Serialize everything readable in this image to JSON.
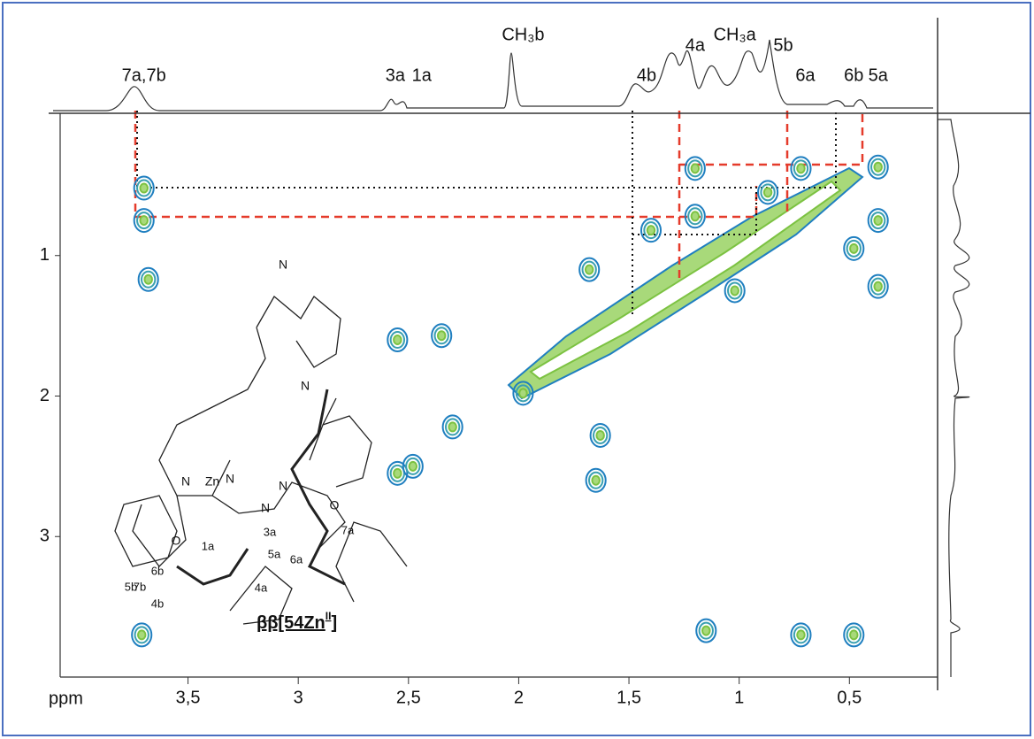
{
  "chart_data": {
    "type": "scatter",
    "x": [
      3.7,
      3.7,
      3.68,
      3.71,
      1.2,
      0.72,
      0.37,
      0.37,
      0.48,
      0.37,
      1.15,
      0.72,
      0.48,
      2.55,
      2.55,
      2.48,
      2.3,
      2.35,
      1.98,
      1.65,
      1.63,
      1.68,
      1.4,
      1.2,
      0.87,
      1.02
    ],
    "values": [
      0.52,
      0.75,
      1.17,
      3.7,
      0.38,
      0.38,
      0.37,
      0.75,
      0.95,
      1.22,
      3.67,
      3.7,
      3.7,
      1.6,
      2.55,
      2.5,
      2.22,
      1.57,
      1.98,
      2.6,
      2.28,
      1.1,
      0.82,
      0.72,
      0.55,
      1.25
    ],
    "xlim": [
      4.08,
      0.1
    ],
    "ylim": [
      0,
      4
    ],
    "xticks": [
      {
        "value": 3.5,
        "label": "3,5"
      },
      3,
      {
        "value": 2.5,
        "label": "2,5"
      },
      2,
      {
        "value": 1.5,
        "label": "1,5"
      },
      1,
      {
        "value": 0.5,
        "label": "0,5"
      }
    ],
    "yticks": [
      1,
      2,
      3
    ],
    "xlabel": "ppm",
    "annotations": [
      {
        "text": "7a,7b",
        "x": 3.7
      },
      {
        "text": "3a",
        "x": 2.56
      },
      {
        "text": "1a",
        "x": 2.44
      },
      {
        "text": "CH₃b",
        "x": 1.98
      },
      {
        "text": "4b",
        "x": 1.42
      },
      {
        "text": "4a",
        "x": 1.2
      },
      {
        "text": "CH₃a",
        "x": 1.02
      },
      {
        "text": "5b",
        "x": 0.8
      },
      {
        "text": "6a",
        "x": 0.7
      },
      {
        "text": "6b",
        "x": 0.48
      },
      {
        "text": "5a",
        "x": 0.37
      }
    ],
    "compound": {
      "name": "ββ[54Zn",
      "superscript": "II",
      "close": "]"
    },
    "structure_labels": [
      "N",
      "N",
      "N",
      "Zn",
      "N",
      "N",
      "N",
      "O",
      "O",
      "1a",
      "3a",
      "7a",
      "7b",
      "6b",
      "6a",
      "5b",
      "5a",
      "4b",
      "4a"
    ]
  }
}
